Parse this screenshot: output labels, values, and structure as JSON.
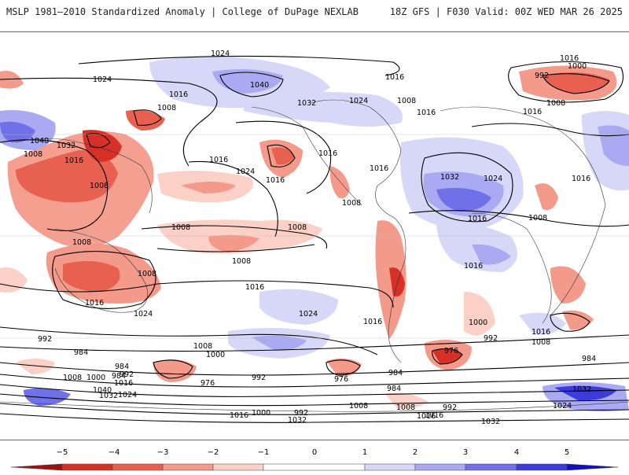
{
  "header": {
    "title": "MSLP 1981–2010 Standardized Anomaly | College of DuPage NEXLAB",
    "run_info": "18Z GFS | F030 Valid: 00Z WED MAR 26 2025"
  },
  "colorbar": {
    "ticks": [
      "−5",
      "−4",
      "−3",
      "−2",
      "−1",
      "0",
      "1",
      "2",
      "3",
      "4",
      "5"
    ],
    "colors": {
      "neg5": "#a01010",
      "neg4": "#d73027",
      "neg3": "#e86050",
      "neg2": "#f39a8a",
      "neg1": "#fbd0c6",
      "zero": "#ffffff",
      "pos1": "#d7d8f8",
      "pos2": "#a9aaf2",
      "pos3": "#7070e8",
      "pos4": "#3c3cdc",
      "pos5": "#1010c0"
    }
  },
  "isobar_labels": [
    "1024",
    "1024",
    "1040",
    "1032",
    "1016",
    "1016",
    "1024",
    "1008",
    "1016",
    "1016",
    "1000",
    "992",
    "1008",
    "1016",
    "1008",
    "1032",
    "1040",
    "1008",
    "1016",
    "1008",
    "1016",
    "1024",
    "1016",
    "1016",
    "1032",
    "1024",
    "1016",
    "1008",
    "1008",
    "1008",
    "1008",
    "1008",
    "1008",
    "1016",
    "1016",
    "1016",
    "1008",
    "1024",
    "1016",
    "1016",
    "1024",
    "1016",
    "1000",
    "992",
    "1016",
    "1008",
    "992",
    "984",
    "1008",
    "1000",
    "984",
    "992",
    "976",
    "984",
    "1016",
    "1000",
    "1008",
    "1040",
    "1032",
    "1024",
    "976",
    "992",
    "976",
    "984",
    "984",
    "992",
    "1008",
    "1016",
    "1000",
    "992",
    "1016",
    "1032",
    "1032",
    "1024",
    "1016",
    "1008",
    "984",
    "1032"
  ]
}
